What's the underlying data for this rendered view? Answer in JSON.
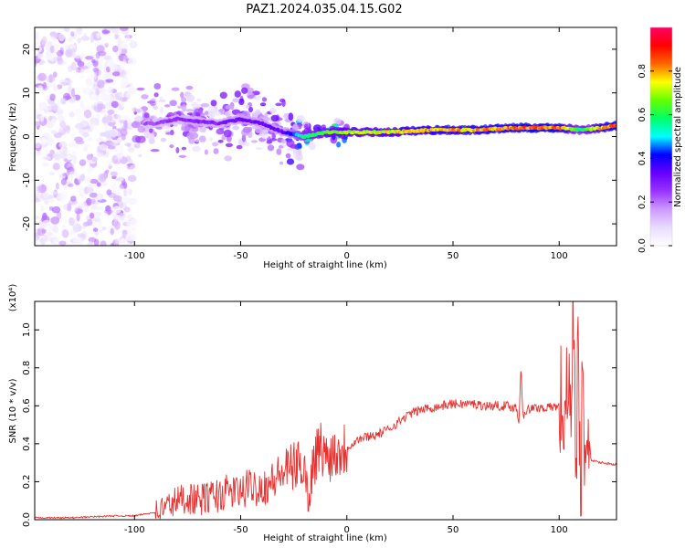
{
  "title": "PAZ1.2024.035.04.15.G02",
  "chart_data": [
    {
      "type": "heatmap",
      "xlabel": "Height of straight line (km)",
      "ylabel": "Frequency (Hz)",
      "xlim": [
        -147,
        127
      ],
      "ylim": [
        -25,
        25
      ],
      "xticks": [
        -100,
        -50,
        0,
        50,
        100
      ],
      "yticks": [
        -20,
        -10,
        0,
        10,
        20
      ],
      "colorbar": {
        "label": "Normalized spectral amplitude",
        "range": [
          0,
          1
        ],
        "ticks": [
          "0.0",
          "0.2",
          "0.4",
          "0.6",
          "0.8"
        ],
        "colormap": [
          "#ffffff",
          "#e8dcff",
          "#cc99ff",
          "#9933ff",
          "#6600ff",
          "#0000ff",
          "#00ffff",
          "#00ff66",
          "#66ff00",
          "#ffff00",
          "#ff6600",
          "#ff0000",
          "#ff0066"
        ]
      },
      "ridge": {
        "x": [
          -90,
          -80,
          -70,
          -60,
          -50,
          -40,
          -30,
          -20,
          -10,
          0,
          20,
          40,
          60,
          80,
          100,
          110,
          120,
          127
        ],
        "frequency": [
          3,
          4,
          3.5,
          3,
          4,
          3,
          1,
          0,
          1,
          1,
          1,
          1.5,
          1.5,
          2,
          2,
          1.5,
          2,
          2.5
        ],
        "amplitude": [
          0.25,
          0.3,
          0.3,
          0.3,
          0.35,
          0.35,
          0.35,
          0.6,
          0.7,
          0.75,
          0.8,
          0.85,
          0.85,
          0.9,
          0.9,
          0.6,
          0.85,
          0.9
        ]
      },
      "noise_region": {
        "x_range": [
          -147,
          -100
        ],
        "frequency_range": [
          -25,
          25
        ]
      },
      "grid": false
    },
    {
      "type": "line",
      "xlabel": "Height of straight line (km)",
      "ylabel": "SNR (10 * v/v)",
      "scale_label": "(x10⁴)",
      "xlim": [
        -147,
        127
      ],
      "ylim": [
        0,
        1.15
      ],
      "xticks": [
        -100,
        -50,
        0,
        50,
        100
      ],
      "yticks": [
        "0.0",
        "0.2",
        "0.4",
        "0.6",
        "0.8",
        "1.0"
      ],
      "color": "#e8302f",
      "series": [
        {
          "x": [
            -147,
            -130,
            -110,
            -100,
            -95,
            -90,
            -85,
            -80,
            -75,
            -70,
            -65,
            -60,
            -55,
            -50,
            -45,
            -40,
            -35,
            -30,
            -25,
            -20,
            -18,
            -16,
            -14,
            -12,
            -10,
            -5,
            0,
            5,
            10,
            15,
            20,
            25,
            30,
            35,
            40,
            45,
            50,
            55,
            60,
            65,
            70,
            75,
            80,
            81,
            82,
            83,
            85,
            90,
            95,
            100,
            103,
            105,
            106,
            107,
            108,
            109,
            110,
            111,
            112,
            113,
            115,
            120,
            127
          ],
          "y": [
            0.01,
            0.01,
            0.02,
            0.02,
            0.03,
            0.04,
            0.07,
            0.1,
            0.12,
            0.1,
            0.12,
            0.13,
            0.15,
            0.14,
            0.18,
            0.17,
            0.2,
            0.25,
            0.28,
            0.3,
            0.08,
            0.3,
            0.35,
            0.38,
            0.33,
            0.36,
            0.38,
            0.42,
            0.44,
            0.45,
            0.48,
            0.52,
            0.56,
            0.58,
            0.59,
            0.6,
            0.61,
            0.61,
            0.61,
            0.6,
            0.6,
            0.6,
            0.59,
            0.5,
            0.82,
            0.55,
            0.58,
            0.59,
            0.59,
            0.6,
            0.6,
            0.6,
            0.85,
            1.15,
            0.3,
            0.95,
            0.1,
            0.7,
            0.05,
            0.6,
            0.31,
            0.3,
            0.29
          ]
        }
      ],
      "grid": false
    }
  ]
}
